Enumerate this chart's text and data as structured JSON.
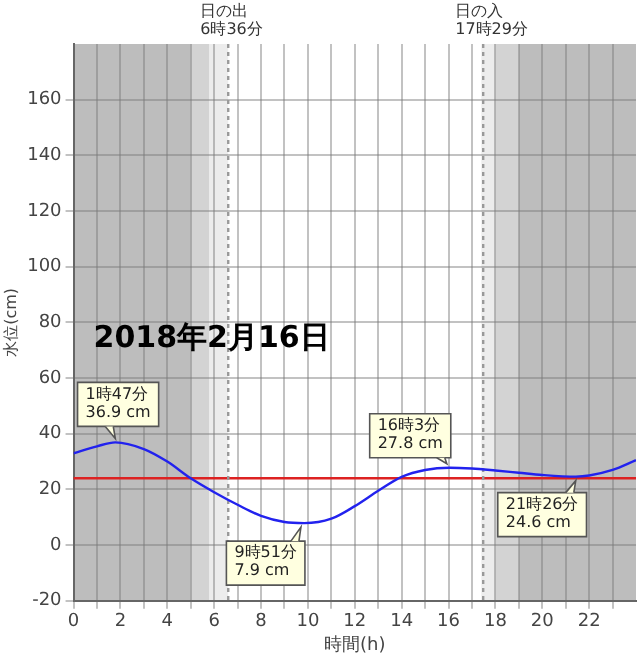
{
  "chart_data": {
    "type": "line",
    "title": "2018年2月16日",
    "xlabel": "時間(h)",
    "ylabel": "水位(cm)",
    "x": [
      0,
      1,
      1.78,
      3,
      4,
      5,
      6,
      7,
      8,
      9,
      9.85,
      11,
      12,
      13,
      14,
      15,
      16.05,
      17,
      18,
      19,
      20,
      21.43,
      22,
      23,
      24
    ],
    "series": [
      {
        "color": "#2222ee",
        "values": [
          33,
          35.5,
          36.9,
          34.5,
          30,
          24,
          19,
          14.5,
          10.5,
          8.3,
          7.9,
          9.5,
          14,
          19.5,
          24.5,
          27,
          27.8,
          27.5,
          26.8,
          26,
          25.2,
          24.6,
          25,
          27,
          30.5
        ]
      }
    ],
    "xlim": [
      0,
      24
    ],
    "xticks": [
      0,
      {
        "value": 1,
        "label": null
      },
      2,
      {
        "value": 3,
        "label": null
      },
      4,
      {
        "value": 5,
        "label": null
      },
      6,
      {
        "value": 7,
        "label": null
      },
      8,
      {
        "value": 9,
        "label": null
      },
      10,
      {
        "value": 11,
        "label": null
      },
      12,
      {
        "value": 13,
        "label": null
      },
      14,
      {
        "value": 15,
        "label": null
      },
      16,
      {
        "value": 17,
        "label": null
      },
      18,
      {
        "value": 19,
        "label": null
      },
      20,
      {
        "value": 21,
        "label": null
      },
      22,
      {
        "value": 23,
        "label": null
      }
    ],
    "ylim": [
      -20,
      180
    ],
    "yticks": [
      -20,
      0,
      20,
      40,
      60,
      80,
      100,
      120,
      140,
      160
    ],
    "grid": true,
    "line_style": "solid",
    "marker": "none",
    "legend": false,
    "ref_lines": [
      {
        "axis": "y",
        "value": 24,
        "color": "#dd2222",
        "line_style": "solid"
      },
      {
        "axis": "x",
        "value": 6.6,
        "label": "日の出\n6時36分",
        "color": "#999999",
        "line_style": "dotted"
      },
      {
        "axis": "x",
        "value": 17.48,
        "label": "日の入\n17時29分",
        "color": "#999999",
        "line_style": "dotted"
      }
    ],
    "bands": [
      {
        "axis": "x",
        "from": 0,
        "to": 5,
        "color": "#bdbdbd"
      },
      {
        "axis": "x",
        "from": 5,
        "to": 5.8,
        "color": "#d3d3d3"
      },
      {
        "axis": "x",
        "from": 5.8,
        "to": 6.6,
        "color": "#ececec"
      },
      {
        "axis": "x",
        "from": 17.4,
        "to": 18,
        "color": "#ececec"
      },
      {
        "axis": "x",
        "from": 18,
        "to": 19,
        "color": "#d3d3d3"
      },
      {
        "axis": "x",
        "from": 19,
        "to": 24,
        "color": "#bdbdbd"
      }
    ],
    "annotations": [
      {
        "text": "1時47分\n36.9 cm",
        "x": 1.78,
        "y": 36.9
      },
      {
        "text": "9時51分\n7.9 cm",
        "x": 9.85,
        "y": 7.9
      },
      {
        "text": "16時3分\n27.8 cm",
        "x": 16.05,
        "y": 27.8
      },
      {
        "text": "21時26分\n24.6 cm",
        "x": 21.43,
        "y": 24.6
      }
    ]
  }
}
